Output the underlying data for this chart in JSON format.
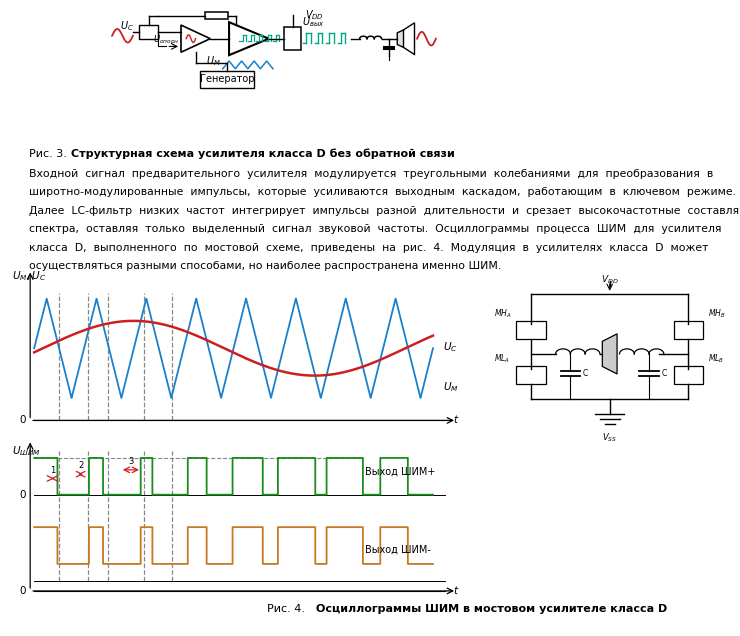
{
  "title_fig3_plain": "Рис. 3.  ",
  "title_fig3_bold": "Структурная схема усилителя класса D без обратной связи",
  "body_lines": [
    "Входной  сигнал  предварительного  усилителя  модулируется  треугольными  колебаниями  для  преобразования  в",
    "широтно-модулированные  импульсы,  которые  усиливаются  выходным  каскадом,  работающим  в  ключевом  режиме.",
    "Далее  LC-фильтр  низких  частот  интегрирует  импульсы  разной  длительности  и  срезает  высокочастотные  составляющие",
    "спектра,  оставляя  только  выделенный  сигнал  звуковой  частоты.  Осциллограммы  процесса  ШИМ  для  усилителя",
    "класса  D,  выполненного  по  мостовой  схеме,  приведены  на  рис.  4.  Модуляция  в  усилителях  класса  D  может",
    "осуществляться разными способами, но наиболее распространена именно ШИМ."
  ],
  "title_fig4_plain": "Рис. 4.  ",
  "title_fig4_bold": "Осциллограммы ШИМ в мостовом усилителе класса D",
  "bg_color": "#ffffff",
  "text_color": "#000000",
  "blue_color": "#1a80cc",
  "red_color": "#cc2020",
  "green_color": "#1a8c1a",
  "orange_color": "#c87820",
  "gray_color": "#888888",
  "teal_color": "#00aa88"
}
